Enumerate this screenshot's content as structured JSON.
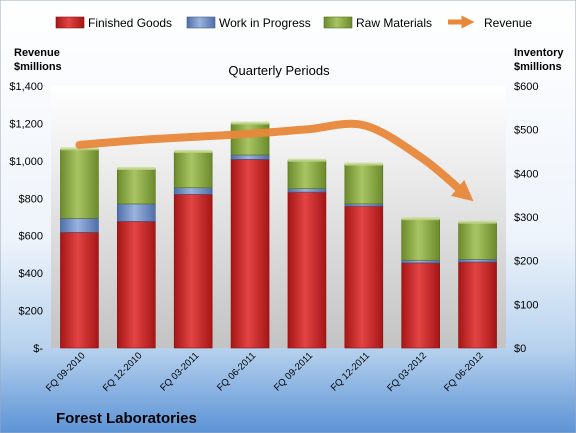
{
  "chart_data": {
    "type": "bar",
    "stacked": true,
    "title": "Quarterly Periods",
    "company": "Forest Laboratories",
    "left_axis": {
      "label_line1": "Revenue",
      "label_line2": "$millions",
      "ticks": [
        "$-",
        "$200",
        "$400",
        "$600",
        "$800",
        "$1,000",
        "$1,200",
        "$1,400"
      ],
      "min": 0,
      "max": 1400
    },
    "right_axis": {
      "label_line1": "Inventory",
      "label_line2": "$millions",
      "ticks": [
        "$0",
        "$100",
        "$200",
        "$300",
        "$400",
        "$500",
        "$600"
      ],
      "min": 0,
      "max": 600
    },
    "categories": [
      "FQ 09-2010",
      "FQ 12-2010",
      "FQ 03-2011",
      "FQ 06-2011",
      "FQ 09-2011",
      "FQ 12-2011",
      "FQ 03-2012",
      "FQ 06-2012"
    ],
    "series": [
      {
        "name": "Finished Goods",
        "axis": "right",
        "color": "#cc2222",
        "values": [
          265,
          290,
          352,
          432,
          357,
          325,
          195,
          197
        ]
      },
      {
        "name": "Work in Progress",
        "axis": "right",
        "color": "#6f8fc8",
        "values": [
          32,
          40,
          15,
          10,
          8,
          5,
          6,
          6
        ]
      },
      {
        "name": "Raw Materials",
        "axis": "right",
        "color": "#8fae45",
        "values": [
          158,
          80,
          82,
          72,
          64,
          90,
          94,
          84
        ]
      }
    ],
    "revenue": {
      "name": "Revenue",
      "axis": "left",
      "color": "#e8883a",
      "values": [
        1085,
        1110,
        1128,
        1145,
        1168,
        1190,
        1020,
        820
      ]
    },
    "grid": false,
    "legend_position": "top"
  }
}
